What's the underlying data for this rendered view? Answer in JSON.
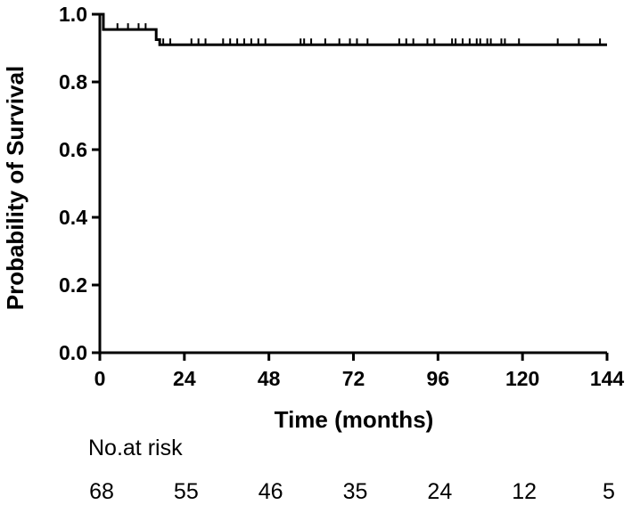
{
  "chart_data": {
    "type": "line",
    "step": true,
    "xlabel": "Time (months)",
    "ylabel": "Probability of Survival",
    "xlim": [
      0,
      144
    ],
    "ylim": [
      0,
      1.0
    ],
    "xticks": [
      0,
      24,
      48,
      72,
      96,
      120,
      144
    ],
    "yticks": [
      0.0,
      0.2,
      0.4,
      0.6,
      0.8,
      1.0
    ],
    "xtick_labels": [
      "0",
      "24",
      "48",
      "72",
      "96",
      "120",
      "144"
    ],
    "ytick_labels": [
      "0.0",
      "0.2",
      "0.4",
      "0.6",
      "0.8",
      "1.0"
    ],
    "grid": false,
    "series": [
      {
        "x": [
          0,
          1,
          15,
          16,
          17,
          144
        ],
        "y": [
          1.0,
          0.955,
          0.955,
          0.925,
          0.91,
          0.91
        ],
        "censored": [
          {
            "x": 5,
            "y": 0.955
          },
          {
            "x": 8,
            "y": 0.955
          },
          {
            "x": 11,
            "y": 0.955
          },
          {
            "x": 13,
            "y": 0.955
          },
          {
            "x": 18,
            "y": 0.91
          },
          {
            "x": 20,
            "y": 0.91
          },
          {
            "x": 26,
            "y": 0.91
          },
          {
            "x": 28,
            "y": 0.91
          },
          {
            "x": 30,
            "y": 0.91
          },
          {
            "x": 35,
            "y": 0.91
          },
          {
            "x": 37,
            "y": 0.91
          },
          {
            "x": 39,
            "y": 0.91
          },
          {
            "x": 41,
            "y": 0.91
          },
          {
            "x": 43,
            "y": 0.91
          },
          {
            "x": 45,
            "y": 0.91
          },
          {
            "x": 47,
            "y": 0.91
          },
          {
            "x": 57,
            "y": 0.91
          },
          {
            "x": 58,
            "y": 0.91
          },
          {
            "x": 60,
            "y": 0.91
          },
          {
            "x": 64,
            "y": 0.91
          },
          {
            "x": 68,
            "y": 0.91
          },
          {
            "x": 71,
            "y": 0.91
          },
          {
            "x": 73,
            "y": 0.91
          },
          {
            "x": 76,
            "y": 0.91
          },
          {
            "x": 85,
            "y": 0.91
          },
          {
            "x": 87,
            "y": 0.91
          },
          {
            "x": 89,
            "y": 0.91
          },
          {
            "x": 93,
            "y": 0.91
          },
          {
            "x": 95,
            "y": 0.91
          },
          {
            "x": 100,
            "y": 0.91
          },
          {
            "x": 101,
            "y": 0.91
          },
          {
            "x": 103,
            "y": 0.91
          },
          {
            "x": 105,
            "y": 0.91
          },
          {
            "x": 107,
            "y": 0.91
          },
          {
            "x": 108,
            "y": 0.91
          },
          {
            "x": 110,
            "y": 0.91
          },
          {
            "x": 111,
            "y": 0.91
          },
          {
            "x": 114,
            "y": 0.91
          },
          {
            "x": 115,
            "y": 0.91
          },
          {
            "x": 119,
            "y": 0.91
          },
          {
            "x": 130,
            "y": 0.91
          },
          {
            "x": 136,
            "y": 0.91
          },
          {
            "x": 142,
            "y": 0.91
          }
        ]
      }
    ],
    "risk_table": {
      "label": "No.at risk",
      "times": [
        0,
        24,
        48,
        72,
        96,
        120,
        144
      ],
      "counts": [
        "68",
        "55",
        "46",
        "35",
        "24",
        "12",
        "5"
      ]
    },
    "colors": {
      "line": "#000000"
    }
  }
}
